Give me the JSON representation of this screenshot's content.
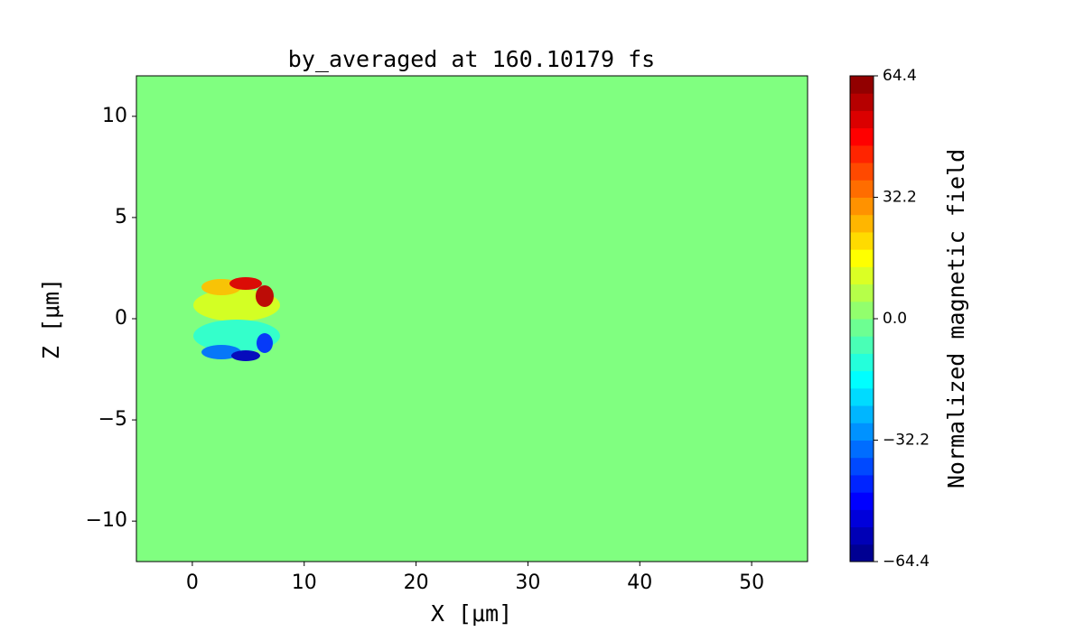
{
  "chart_data": {
    "type": "heatmap",
    "title": "by_averaged at 160.10179 fs",
    "xlabel": "X [μm]",
    "ylabel": "Z [μm]",
    "xlim": [
      -5,
      55
    ],
    "xticks": [
      0,
      10,
      20,
      30,
      40,
      50
    ],
    "ylim": [
      -12,
      12
    ],
    "yticks": [
      {
        "value": -10,
        "label": "−10"
      },
      {
        "value": -5,
        "label": "−5"
      },
      0,
      5,
      10
    ],
    "colormap": "jet",
    "colorbar": {
      "label": "Normalized magnetic field",
      "lim": [
        -64.4,
        64.4
      ],
      "ticks": [
        {
          "value": -64.4,
          "label": "−64.4"
        },
        {
          "value": -32.2,
          "label": "−32.2"
        },
        {
          "value": 0,
          "label": "0.0"
        },
        32.2,
        64.4
      ]
    }
  }
}
